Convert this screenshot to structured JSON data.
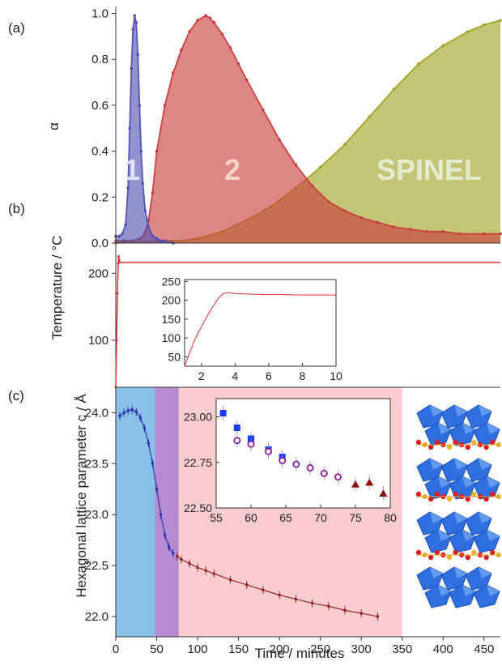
{
  "chart_data": [
    {
      "panel": "(a)",
      "type": "area",
      "ylabel": "α",
      "xlim": [
        0,
        470
      ],
      "ylim": [
        0,
        1.03
      ],
      "yticks": [
        0.0,
        0.2,
        0.4,
        0.6,
        0.8,
        1.0
      ],
      "series": [
        {
          "name": "1",
          "color": "#4f4fb2",
          "x": [
            0,
            4,
            8,
            12,
            15,
            17,
            19,
            21,
            23,
            25,
            27,
            29,
            31,
            33,
            36,
            40,
            45,
            50,
            55,
            60,
            70
          ],
          "y": [
            0.03,
            0.03,
            0.04,
            0.08,
            0.24,
            0.5,
            0.76,
            0.93,
            0.99,
            0.96,
            0.82,
            0.6,
            0.4,
            0.26,
            0.14,
            0.07,
            0.03,
            0.02,
            0.01,
            0.01,
            0.0
          ]
        },
        {
          "name": "2",
          "color": "#c83c3c",
          "x": [
            0,
            10,
            20,
            30,
            35,
            40,
            45,
            50,
            60,
            70,
            80,
            90,
            100,
            110,
            115,
            120,
            130,
            140,
            150,
            160,
            180,
            200,
            220,
            240,
            260,
            280,
            300,
            320,
            340,
            360,
            380,
            400,
            420,
            450,
            470
          ],
          "y": [
            0.01,
            0.01,
            0.01,
            0.02,
            0.04,
            0.1,
            0.22,
            0.4,
            0.6,
            0.74,
            0.84,
            0.92,
            0.97,
            0.99,
            0.98,
            0.96,
            0.91,
            0.85,
            0.78,
            0.71,
            0.58,
            0.45,
            0.34,
            0.25,
            0.18,
            0.14,
            0.11,
            0.09,
            0.07,
            0.06,
            0.05,
            0.05,
            0.04,
            0.04,
            0.04
          ]
        },
        {
          "name": "SPINEL",
          "color": "#a0a020",
          "x": [
            0,
            50,
            80,
            100,
            130,
            160,
            190,
            220,
            250,
            280,
            310,
            340,
            370,
            400,
            430,
            450,
            470
          ],
          "y": [
            0.0,
            0.01,
            0.01,
            0.02,
            0.05,
            0.1,
            0.16,
            0.24,
            0.33,
            0.43,
            0.55,
            0.67,
            0.78,
            0.86,
            0.92,
            0.95,
            0.97
          ]
        }
      ]
    },
    {
      "panel": "(b)",
      "type": "line",
      "ylabel": "Temperature / °C",
      "xlim": [
        0,
        470
      ],
      "ylim": [
        30,
        245
      ],
      "yticks": [
        100,
        200
      ],
      "series": [
        {
          "name": "",
          "color": "#e03030",
          "x": [
            0,
            1,
            2,
            3,
            3.5,
            4,
            5,
            470
          ],
          "y": [
            30,
            100,
            170,
            215,
            225,
            220,
            216,
            216
          ]
        }
      ],
      "inset": {
        "type": "line",
        "xlim": [
          1,
          10
        ],
        "ylim": [
          25,
          255
        ],
        "xticks": [
          2,
          4,
          6,
          8,
          10
        ],
        "yticks": [
          50,
          100,
          150,
          200,
          250
        ],
        "series": [
          {
            "name": "",
            "color": "#e03030",
            "x": [
              1.0,
              1.3,
              1.6,
              2.0,
              2.5,
              3.0,
              3.3,
              3.6,
              4,
              5,
              6,
              7,
              8,
              9,
              10
            ],
            "y": [
              25,
              60,
              95,
              130,
              170,
              205,
              218,
              220,
              218,
              216,
              215,
              215,
              214,
              214,
              214
            ]
          }
        ]
      }
    },
    {
      "panel": "(c)",
      "type": "scatter",
      "xlabel": "Time / minutes",
      "ylabel": "Hexagonal lattice parameter c / Å",
      "xlim": [
        0,
        470
      ],
      "ylim": [
        21.8,
        24.25
      ],
      "xticks": [
        0,
        50,
        100,
        150,
        200,
        250,
        300,
        350,
        400,
        450
      ],
      "yticks": [
        22.0,
        22.5,
        23.0,
        23.5,
        24.0
      ],
      "regions": [
        {
          "from": 0,
          "to": 48,
          "color": "#87c1e8"
        },
        {
          "from": 48,
          "to": 77,
          "color": "#b58ccf"
        },
        {
          "from": 77,
          "to": 350,
          "color": "#f9cdd0"
        }
      ],
      "series": [
        {
          "name": "",
          "color": "#2a2aa8",
          "x": [
            5,
            10,
            15,
            20,
            25,
            30,
            35,
            40,
            45,
            50,
            55,
            60,
            65,
            70
          ],
          "y": [
            23.97,
            24.0,
            24.02,
            24.03,
            24.01,
            23.95,
            23.85,
            23.7,
            23.5,
            23.25,
            23.0,
            22.8,
            22.68,
            22.62
          ]
        },
        {
          "name": "",
          "color": "#8b1a1a",
          "x": [
            75,
            80,
            90,
            100,
            110,
            120,
            140,
            160,
            180,
            200,
            220,
            240,
            260,
            280,
            300,
            320
          ],
          "y": [
            22.59,
            22.56,
            22.52,
            22.48,
            22.45,
            22.42,
            22.36,
            22.31,
            22.26,
            22.21,
            22.17,
            22.13,
            22.1,
            22.06,
            22.03,
            22.0
          ]
        }
      ],
      "inset": {
        "type": "scatter",
        "xlim": [
          55,
          80
        ],
        "ylim": [
          22.5,
          23.1
        ],
        "xticks": [
          55,
          60,
          65,
          70,
          75,
          80
        ],
        "yticks": [
          22.5,
          22.75,
          23.0
        ],
        "ytick_labels": [
          "22.50",
          "22.75",
          "23.00"
        ],
        "series": [
          {
            "name": "",
            "marker": "square",
            "color": "#1a3cf0",
            "x": [
              56,
              58,
              60,
              62.5,
              64.5
            ],
            "y": [
              23.02,
              22.94,
              22.88,
              22.82,
              22.78
            ]
          },
          {
            "name": "",
            "marker": "circle",
            "color": "#8a1a9a",
            "x": [
              58,
              60,
              62.5,
              64.5,
              66.5,
              68.5,
              70.5,
              72.5
            ],
            "y": [
              22.87,
              22.85,
              22.81,
              22.76,
              22.74,
              22.72,
              22.69,
              22.67
            ]
          },
          {
            "name": "",
            "marker": "triangle",
            "color": "#8b1010",
            "x": [
              75,
              77,
              79
            ],
            "y": [
              22.63,
              22.64,
              22.58
            ]
          }
        ]
      }
    }
  ],
  "labels": {
    "panel_a": "(a)",
    "panel_b": "(b)",
    "panel_c": "(c)",
    "ylabel_a": "α",
    "ylabel_b": "Temperature / °C",
    "ylabel_c": "Hexagonal lattice parameter c / Å",
    "xlabel": "Time / minutes",
    "region_1": "1",
    "region_2": "2",
    "region_spinel": "SPINEL"
  },
  "region_label_colors": {
    "one": "#dfe0f4",
    "two": "#f4d2c8",
    "spinel": "#e3ecd0"
  },
  "structure_image": "layered-spinel-polyhedra-illustration"
}
